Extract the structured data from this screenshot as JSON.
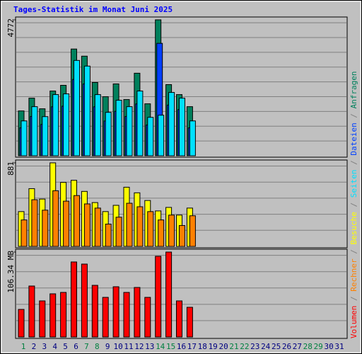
{
  "chart_data": {
    "type": "bar",
    "title": "Tages-Statistik im Monat Juni 2025",
    "categories": [
      "1",
      "2",
      "3",
      "4",
      "5",
      "6",
      "7",
      "8",
      "9",
      "10",
      "11",
      "12",
      "13",
      "14",
      "15",
      "16",
      "17",
      "18",
      "19",
      "20",
      "21",
      "22",
      "23",
      "24",
      "25",
      "26",
      "27",
      "28",
      "29",
      "30",
      "31"
    ],
    "category_colors": [
      "#008040",
      "#000080",
      "#000080",
      "#000080",
      "#000080",
      "#000080",
      "#008040",
      "#008040",
      "#000080",
      "#000080",
      "#000080",
      "#000080",
      "#000080",
      "#008040",
      "#008040",
      "#000080",
      "#000080",
      "#000080",
      "#000080",
      "#000080",
      "#008040",
      "#008040",
      "#000080",
      "#000080",
      "#000080",
      "#000080",
      "#000080",
      "#008040",
      "#008040",
      "#000080",
      "#000080"
    ],
    "legend_separator": " / ",
    "panels": [
      {
        "ylim": [
          0,
          4772
        ],
        "yticks": [
          4772
        ],
        "series": [
          {
            "name": "Anfragen",
            "color": "#00805c",
            "values": [
              1574,
              2023,
              1649,
              2273,
              2473,
              3747,
              3497,
              2573,
              2073,
              2523,
              1974,
              2898,
              1824,
              4772,
              2498,
              2148,
              1724,
              null,
              null,
              null,
              null,
              null,
              null,
              null,
              null,
              null,
              null,
              null,
              null,
              null,
              null
            ]
          },
          {
            "name": "Dateien",
            "color": "#0040ff",
            "values": [
              980,
              1380,
              1100,
              1720,
              1740,
              2680,
              2520,
              1720,
              1220,
              1560,
              1380,
              1820,
              1080,
              3947,
              1780,
              1620,
              980,
              null,
              null,
              null,
              null,
              null,
              null,
              null,
              null,
              null,
              null,
              null,
              null,
              null,
              null
            ]
          },
          {
            "name": "Seiten",
            "color": "#00e0ff",
            "values": [
              1224,
              1724,
              1374,
              2148,
              2173,
              3347,
              3148,
              2148,
              1524,
              1949,
              1724,
              2273,
              1349,
              1424,
              2223,
              2023,
              1224,
              null,
              null,
              null,
              null,
              null,
              null,
              null,
              null,
              null,
              null,
              null,
              null,
              null,
              null
            ]
          }
        ]
      },
      {
        "ylim": [
          0,
          881
        ],
        "yticks": [
          881
        ],
        "series": [
          {
            "name": "Besuche",
            "color": "#ffff00",
            "values": [
              367,
              609,
              499,
              881,
              675,
              697,
              580,
              462,
              367,
              433,
              624,
              565,
              484,
              374,
              411,
              330,
              404,
              null,
              null,
              null,
              null,
              null,
              null,
              null,
              null,
              null,
              null,
              null,
              null,
              null,
              null
            ]
          },
          {
            "name": "Rechner",
            "color": "#ff8000",
            "values": [
              279,
              492,
              382,
              587,
              477,
              536,
              448,
              404,
              235,
              308,
              455,
              418,
              367,
              279,
              330,
              220,
              323,
              null,
              null,
              null,
              null,
              null,
              null,
              null,
              null,
              null,
              null,
              null,
              null,
              null,
              null
            ]
          }
        ]
      },
      {
        "ylim": [
          0,
          106.34
        ],
        "yticks": [
          {
            "value": 106.34,
            "label": "106.34 MB"
          }
        ],
        "series": [
          {
            "name": "Volumen",
            "color": "#ff0000",
            "values": [
              34.56,
              63.81,
              45.2,
              54.06,
              55.83,
              93.94,
              91.28,
              64.69,
              49.63,
              62.92,
              55.83,
              62.03,
              49.63,
              101.03,
              106.34,
              45.2,
              37.22,
              null,
              null,
              null,
              null,
              null,
              null,
              null,
              null,
              null,
              null,
              null,
              null,
              null,
              null
            ]
          }
        ]
      }
    ]
  }
}
